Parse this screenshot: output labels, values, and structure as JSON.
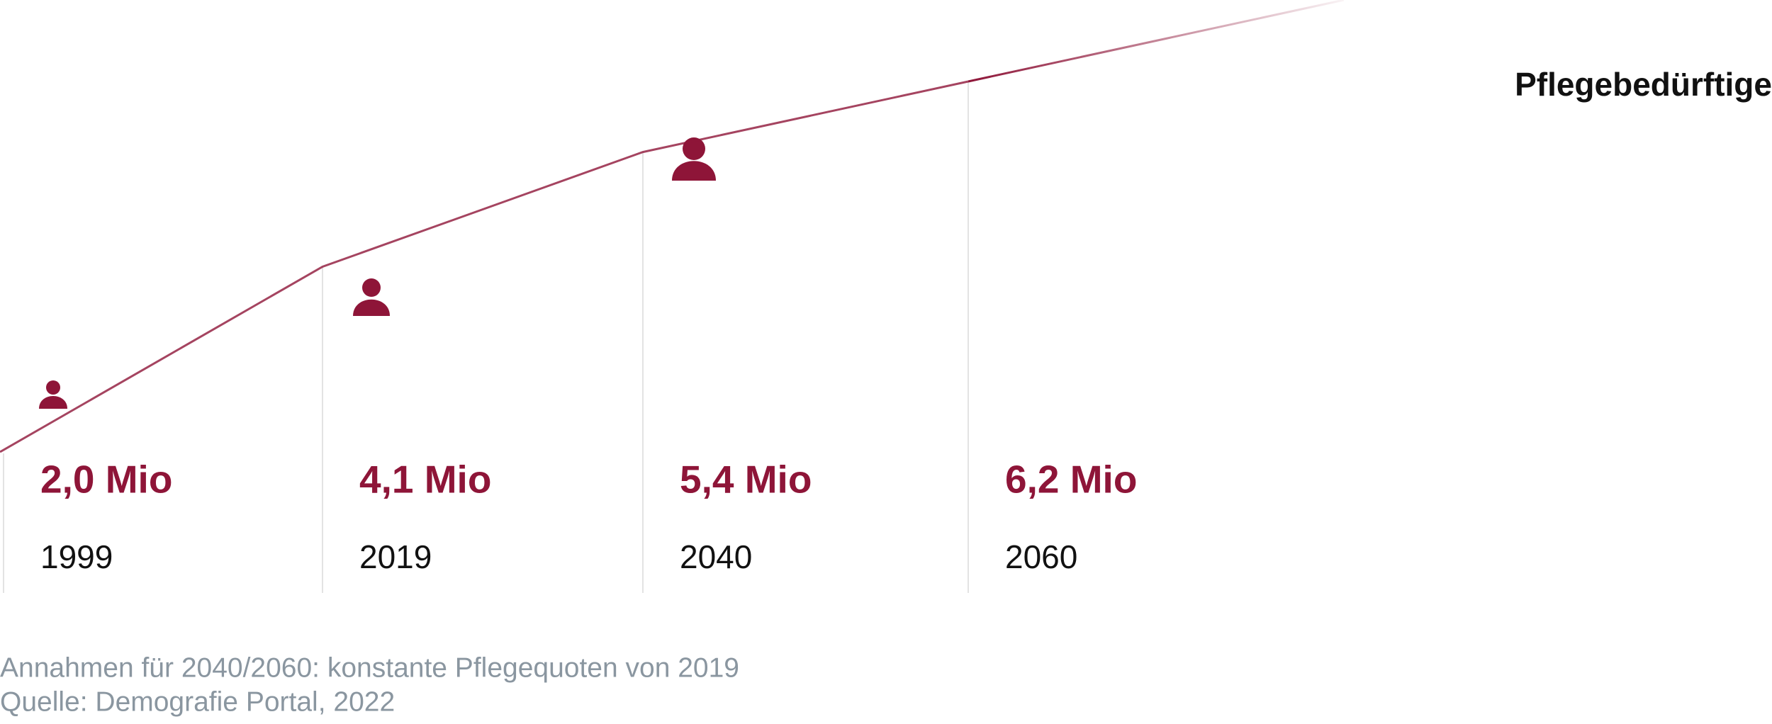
{
  "chart_data": {
    "type": "line",
    "title": "Pflegebedürftige",
    "categories": [
      "1999",
      "2019",
      "2040",
      "2060"
    ],
    "values": [
      2.0,
      4.1,
      5.4,
      6.2
    ],
    "value_labels": [
      "2,0 Mio",
      "4,1 Mio",
      "5,4 Mio",
      "6,2 Mio"
    ],
    "color": "#8e1538",
    "notes": [
      "Annahmen für 2040/2060: konstante Pflegequoten von 2019",
      "Quelle: Demografie Portal, 2022"
    ]
  }
}
